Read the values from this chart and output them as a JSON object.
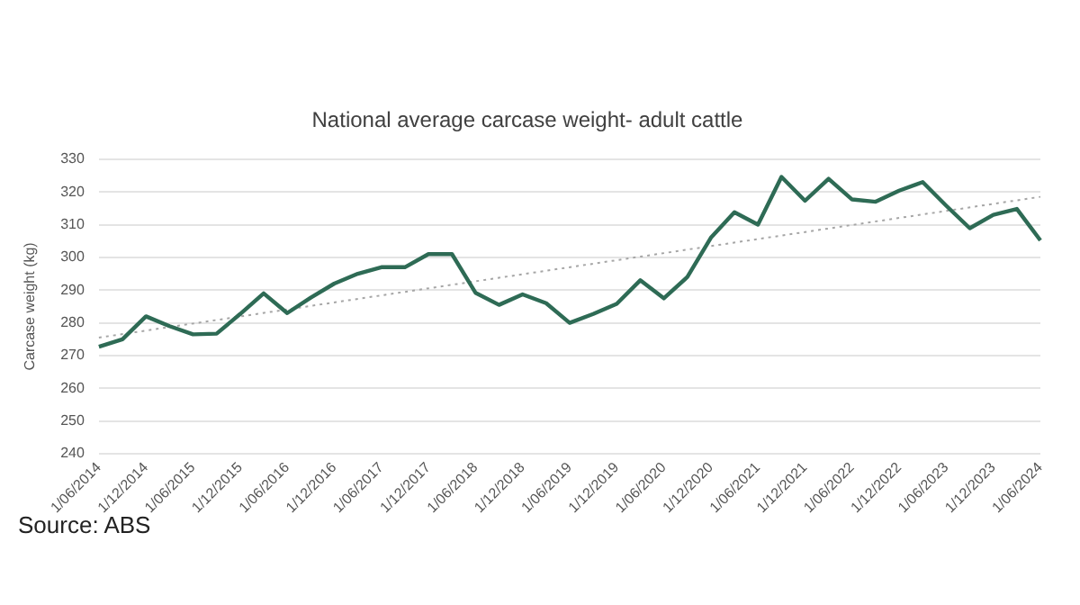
{
  "chart_data": {
    "type": "line",
    "title": "National average carcase weight- adult cattle",
    "ylabel": "Carcase weight (kg)",
    "categories": [
      "1/06/2014",
      null,
      "1/12/2014",
      null,
      "1/06/2015",
      null,
      "1/12/2015",
      null,
      "1/06/2016",
      null,
      "1/12/2016",
      null,
      "1/06/2017",
      null,
      "1/12/2017",
      null,
      "1/06/2018",
      null,
      "1/12/2018",
      null,
      "1/06/2019",
      null,
      "1/12/2019",
      null,
      "1/06/2020",
      null,
      "1/12/2020",
      null,
      "1/06/2021",
      null,
      "1/12/2021",
      null,
      "1/06/2022",
      null,
      "1/12/2022",
      null,
      "1/06/2023",
      null,
      "1/12/2023",
      null,
      "1/06/2024"
    ],
    "series": [
      {
        "color": "#2e6b55",
        "values": [
          272.7,
          275,
          282,
          279,
          276.5,
          276.7,
          282.7,
          289,
          283,
          287.7,
          292,
          295,
          297,
          297,
          301,
          301,
          289.2,
          285.5,
          288.7,
          286,
          280,
          282.7,
          285.8,
          293,
          287.5,
          294,
          306,
          313.8,
          310,
          324.6,
          317.3,
          324,
          317.7,
          317,
          320.4,
          323,
          315.8,
          308.9,
          313,
          314.8,
          305.2
        ]
      },
      {
        "color": "#a6a6a6",
        "line_style": "dotted",
        "values": [
          275.5,
          null,
          null,
          null,
          null,
          null,
          null,
          null,
          null,
          null,
          null,
          null,
          null,
          null,
          null,
          null,
          null,
          null,
          null,
          null,
          null,
          null,
          null,
          null,
          null,
          null,
          null,
          null,
          null,
          null,
          null,
          null,
          null,
          null,
          null,
          null,
          null,
          null,
          null,
          null,
          318.5
        ]
      }
    ],
    "ylim": [
      240,
      330
    ],
    "yticks": [
      240,
      250,
      260,
      270,
      280,
      290,
      300,
      310,
      320,
      330
    ],
    "grid": "y",
    "legend": false,
    "marker": "none",
    "annotations": [
      "Source: ABS"
    ]
  }
}
